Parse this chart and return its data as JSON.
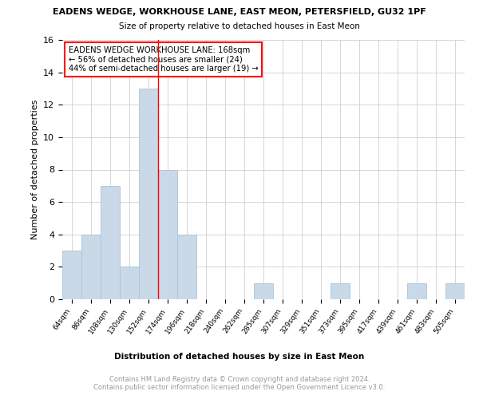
{
  "title1": "EADENS WEDGE, WORKHOUSE LANE, EAST MEON, PETERSFIELD, GU32 1PF",
  "title2": "Size of property relative to detached houses in East Meon",
  "xlabel": "Distribution of detached houses by size in East Meon",
  "ylabel": "Number of detached properties",
  "categories": [
    "64sqm",
    "86sqm",
    "108sqm",
    "130sqm",
    "152sqm",
    "174sqm",
    "196sqm",
    "218sqm",
    "240sqm",
    "262sqm",
    "285sqm",
    "307sqm",
    "329sqm",
    "351sqm",
    "373sqm",
    "395sqm",
    "417sqm",
    "439sqm",
    "461sqm",
    "483sqm",
    "505sqm"
  ],
  "values": [
    3,
    4,
    7,
    2,
    13,
    8,
    4,
    0,
    0,
    0,
    1,
    0,
    0,
    0,
    1,
    0,
    0,
    0,
    1,
    0,
    1
  ],
  "bar_color": "#c9d9e8",
  "bar_edgecolor": "#a8c4d8",
  "red_line_index": 4.5,
  "annotation_title": "EADENS WEDGE WORKHOUSE LANE: 168sqm",
  "annotation_line1": "← 56% of detached houses are smaller (24)",
  "annotation_line2": "44% of semi-detached houses are larger (19) →",
  "footer": "Contains HM Land Registry data © Crown copyright and database right 2024.\nContains public sector information licensed under the Open Government Licence v3.0.",
  "ylim": [
    0,
    16
  ],
  "yticks": [
    0,
    2,
    4,
    6,
    8,
    10,
    12,
    14,
    16
  ],
  "background_color": "#ffffff",
  "grid_color": "#d0d0d0"
}
